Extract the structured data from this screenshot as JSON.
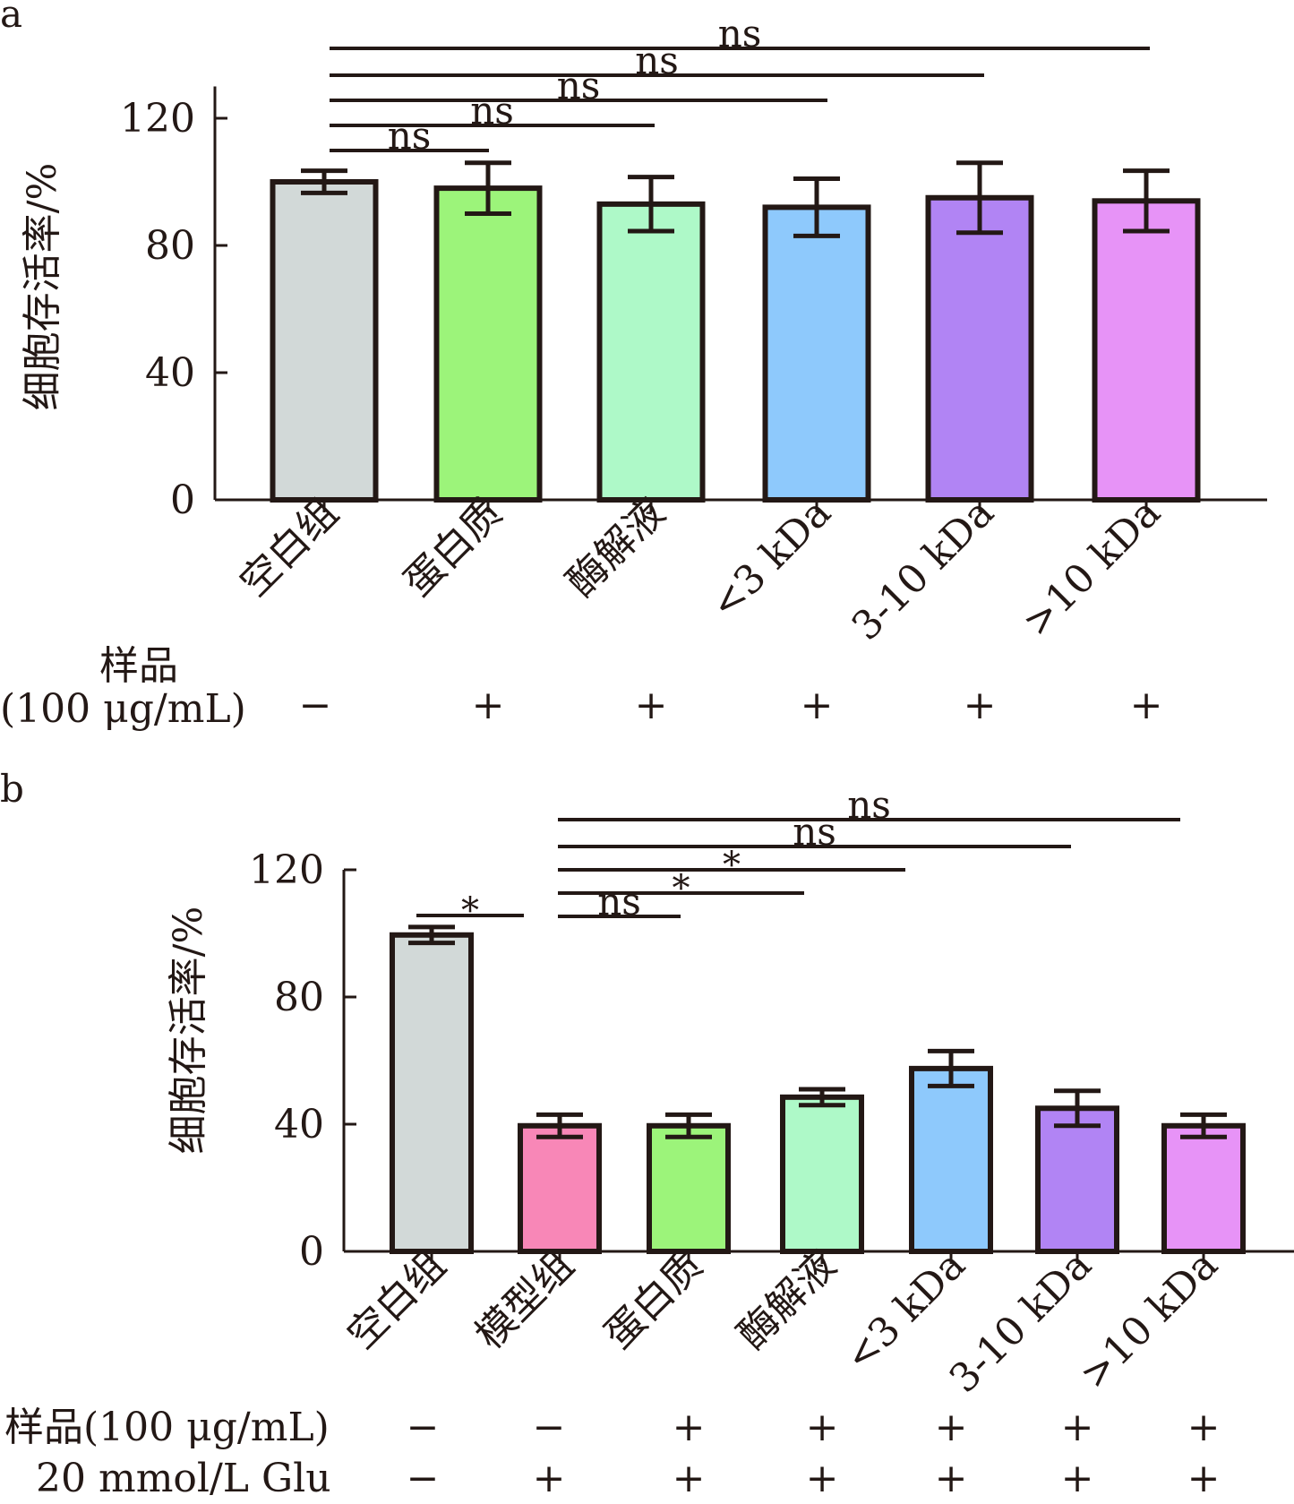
{
  "chart_data": [
    {
      "panel": "a",
      "type": "bar",
      "categories": [
        "空白组",
        "蛋白质",
        "酶解液",
        "<3 kDa",
        "3-10 kDa",
        ">10 kDa"
      ],
      "values": [
        100,
        98,
        93,
        92,
        95,
        94
      ],
      "errors": [
        3.5,
        8,
        8.5,
        9,
        11,
        9.5
      ],
      "colors": [
        "#d2d9d8",
        "#9cf47a",
        "#aef9c8",
        "#8ec9fc",
        "#b184f4",
        "#e793f7"
      ],
      "ylabel": "细胞存活率/%",
      "yticks": [
        "0",
        "40",
        "80",
        "120"
      ],
      "ylim": [
        0,
        130
      ],
      "significance": [
        {
          "from": 0,
          "to": 1,
          "label": "ns"
        },
        {
          "from": 0,
          "to": 2,
          "label": "ns"
        },
        {
          "from": 0,
          "to": 3,
          "label": "ns"
        },
        {
          "from": 0,
          "to": 4,
          "label": "ns"
        },
        {
          "from": 0,
          "to": 5,
          "label": "ns"
        }
      ],
      "treatment_rows": [
        {
          "label_lines": [
            "样品",
            "(100 μg/mL)"
          ],
          "signs": [
            "−",
            "+",
            "+",
            "+",
            "+",
            "+"
          ]
        }
      ]
    },
    {
      "panel": "b",
      "type": "bar",
      "categories": [
        "空白组",
        "模型组",
        "蛋白质",
        "酶解液",
        "<3 kDa",
        "3-10 kDa",
        ">10 kDa"
      ],
      "values": [
        99.5,
        39.5,
        39.5,
        48.5,
        57.5,
        45,
        39.5
      ],
      "errors": [
        2.5,
        3.5,
        3.5,
        2.5,
        5.5,
        5.5,
        3.5
      ],
      "colors": [
        "#d2d9d8",
        "#f887b7",
        "#9cf47a",
        "#aef9c8",
        "#8ec9fc",
        "#b184f4",
        "#e793f7"
      ],
      "ylabel": "细胞存活率/%",
      "yticks": [
        "0",
        "40",
        "80",
        "120"
      ],
      "ylim": [
        0,
        120
      ],
      "significance": [
        {
          "from": 0,
          "to": 1,
          "label": "*"
        },
        {
          "from": 1,
          "to": 2,
          "label": "ns"
        },
        {
          "from": 1,
          "to": 3,
          "label": "*"
        },
        {
          "from": 1,
          "to": 4,
          "label": "*"
        },
        {
          "from": 1,
          "to": 5,
          "label": "ns"
        },
        {
          "from": 1,
          "to": 6,
          "label": "ns"
        }
      ],
      "treatment_rows": [
        {
          "label_lines": [
            "样品(100 μg/mL)"
          ],
          "signs": [
            "−",
            "−",
            "+",
            "+",
            "+",
            "+",
            "+"
          ]
        },
        {
          "label_lines": [
            "20 mmol/L Glu"
          ],
          "signs": [
            "−",
            "+",
            "+",
            "+",
            "+",
            "+",
            "+"
          ]
        }
      ]
    }
  ]
}
